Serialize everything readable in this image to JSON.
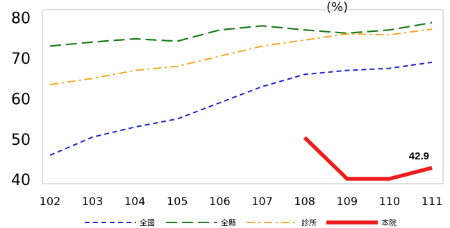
{
  "chart_data": {
    "type": "line",
    "title": "(%)",
    "xlabel": "",
    "ylabel": "",
    "categories": [
      "102",
      "103",
      "104",
      "105",
      "106",
      "107",
      "108",
      "109",
      "110",
      "111"
    ],
    "yticks": [
      "40",
      "50",
      "60",
      "70",
      "80"
    ],
    "ylim": [
      39,
      82
    ],
    "grid": false,
    "legend_position": "bottom",
    "series": [
      {
        "name": "全國",
        "color": "#1f1fcc",
        "style": "dashed",
        "values": [
          46.0,
          50.5,
          53.0,
          55.0,
          59.0,
          63.0,
          66.0,
          67.0,
          67.5,
          69.0
        ]
      },
      {
        "name": "全縣",
        "color": "#1a7a1a",
        "style": "long-dash",
        "values": [
          73.0,
          74.0,
          74.8,
          74.2,
          77.0,
          78.0,
          77.0,
          76.2,
          77.0,
          78.8
        ]
      },
      {
        "name": "診所",
        "color": "#f5a623",
        "style": "dash-dot",
        "values": [
          63.5,
          65.0,
          67.0,
          68.0,
          70.5,
          73.0,
          74.5,
          76.0,
          75.8,
          77.2
        ]
      },
      {
        "name": "本院",
        "color": "#ee1c1c",
        "style": "solid",
        "values": [
          null,
          null,
          null,
          null,
          null,
          null,
          50.4,
          40.2,
          40.2,
          42.9
        ]
      }
    ],
    "annotations": [
      {
        "series": "本院",
        "category": "111",
        "text": "42.9"
      }
    ]
  }
}
